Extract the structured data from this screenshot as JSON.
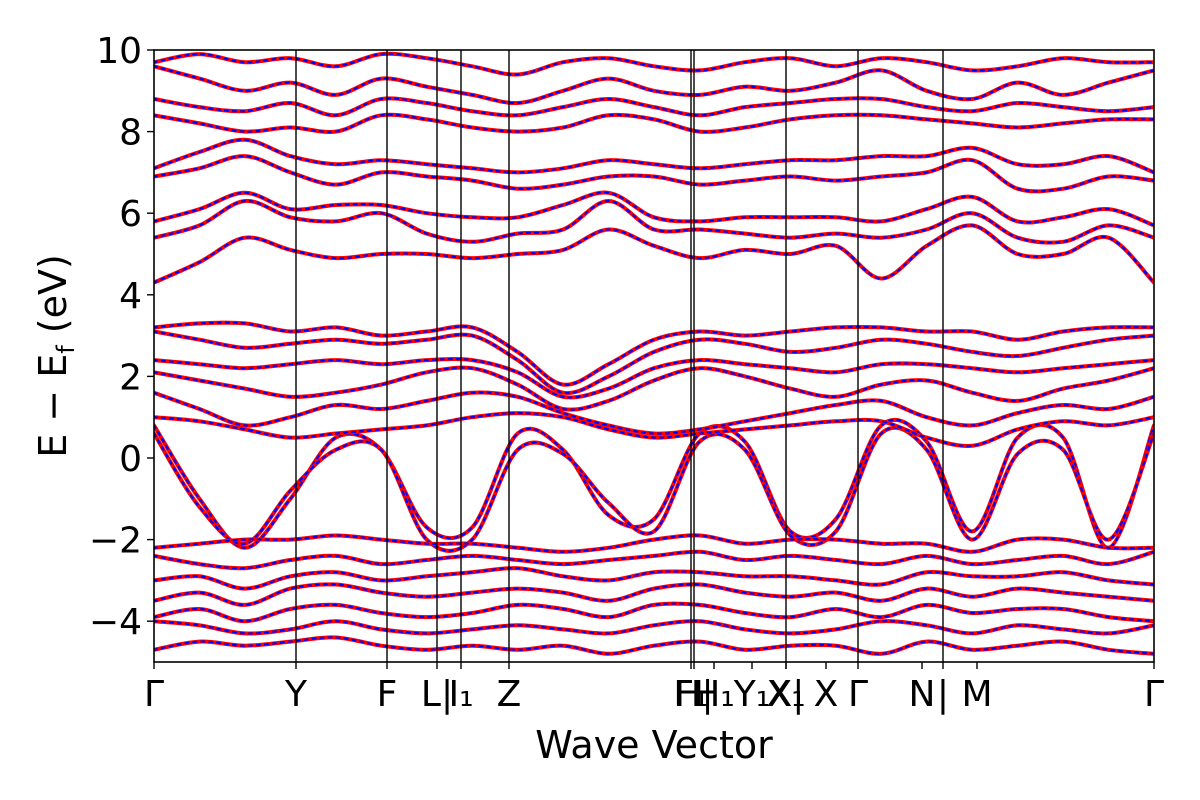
{
  "chart_data": {
    "type": "line",
    "xlabel": "Wave Vector",
    "ylabel": "E − E_f (eV)",
    "ylabel_parts": {
      "main": "E − E",
      "sub": "f",
      "unit": " (eV)"
    },
    "ylim": [
      -5,
      10
    ],
    "yticks": [
      -4,
      -2,
      0,
      2,
      4,
      6,
      8,
      10
    ],
    "ytick_labels": [
      "−4",
      "−2",
      "0",
      "2",
      "4",
      "6",
      "8",
      "10"
    ],
    "xlim": [
      0,
      1
    ],
    "kpath_ticks": [
      {
        "x": 0.0,
        "label": "Γ"
      },
      {
        "x": 0.142,
        "label": "Y"
      },
      {
        "x": 0.233,
        "label": "F"
      },
      {
        "x": 0.283,
        "label": "L|"
      },
      {
        "x": 0.307,
        "label": "I₁"
      },
      {
        "x": 0.355,
        "label": "Z"
      },
      {
        "x": 0.537,
        "label": "F₁"
      },
      {
        "x": 0.54,
        "label": "H|"
      },
      {
        "x": 0.56,
        "label": "H₁"
      },
      {
        "x": 0.598,
        "label": "Y₁"
      },
      {
        "x": 0.632,
        "label": "X|"
      },
      {
        "x": 0.632,
        "label": "X₁"
      },
      {
        "x": 0.672,
        "label": "X"
      },
      {
        "x": 0.704,
        "label": "Γ"
      },
      {
        "x": 0.768,
        "label": "N"
      },
      {
        "x": 0.789,
        "label": "|"
      },
      {
        "x": 0.823,
        "label": "M"
      },
      {
        "x": 1.0,
        "label": "Γ"
      }
    ],
    "kpath_lines": [
      0.142,
      0.233,
      0.283,
      0.307,
      0.355,
      0.537,
      0.54,
      0.632,
      0.704,
      0.789
    ],
    "series_styles": [
      {
        "color": "#ff0000",
        "style": "solid"
      },
      {
        "color": "#0000ff",
        "style": "dashed"
      }
    ],
    "bands": [
      {
        "y": [
          0.8,
          -1.0,
          -2.2,
          -1.0,
          0.5,
          0.2,
          -1.7,
          -1.7,
          0.6,
          0.2,
          -1.4,
          -1.5,
          0.6,
          0.4,
          -1.8,
          -1.5,
          0.8,
          0.4,
          -1.8,
          0.5,
          0.5,
          -2.2,
          0.8
        ]
      },
      {
        "y": [
          0.6,
          -1.2,
          -2.1,
          -0.8,
          0.2,
          0.2,
          -2.0,
          -2.0,
          0.2,
          0.1,
          -1.1,
          -1.8,
          0.4,
          0.2,
          -1.9,
          -1.8,
          0.6,
          0.2,
          -2.0,
          0.1,
          0.2,
          -2.0,
          0.6
        ]
      },
      {
        "y": [
          1.0,
          0.9,
          0.7,
          0.5,
          0.6,
          0.7,
          0.8,
          1.0,
          1.1,
          1.0,
          0.7,
          0.5,
          0.6,
          0.7,
          0.8,
          0.9,
          0.9,
          0.5,
          0.3,
          0.7,
          0.9,
          0.8,
          1.0
        ]
      },
      {
        "y": [
          1.6,
          1.2,
          0.8,
          1.0,
          1.3,
          1.2,
          1.4,
          1.6,
          1.5,
          1.1,
          0.8,
          0.6,
          0.7,
          0.9,
          1.1,
          1.3,
          1.4,
          1.0,
          0.8,
          1.1,
          1.3,
          1.2,
          1.5
        ]
      },
      {
        "y": [
          2.1,
          1.9,
          1.7,
          1.5,
          1.6,
          1.8,
          2.1,
          2.2,
          1.8,
          1.2,
          1.4,
          1.9,
          2.2,
          2.0,
          1.7,
          1.5,
          1.8,
          1.9,
          1.6,
          1.4,
          1.7,
          1.9,
          2.2
        ]
      },
      {
        "y": [
          2.4,
          2.3,
          2.2,
          2.3,
          2.4,
          2.3,
          2.4,
          2.4,
          2.1,
          1.5,
          1.7,
          2.2,
          2.4,
          2.3,
          2.2,
          2.1,
          2.3,
          2.3,
          2.2,
          2.1,
          2.2,
          2.3,
          2.4
        ]
      },
      {
        "y": [
          3.1,
          2.9,
          2.7,
          2.8,
          2.9,
          2.8,
          2.9,
          3.0,
          2.4,
          1.6,
          2.0,
          2.6,
          2.9,
          2.8,
          2.6,
          2.7,
          2.9,
          2.8,
          2.6,
          2.5,
          2.7,
          2.9,
          3.0
        ]
      },
      {
        "y": [
          3.2,
          3.3,
          3.3,
          3.1,
          3.2,
          3.0,
          3.1,
          3.2,
          2.6,
          1.8,
          2.3,
          2.9,
          3.1,
          3.0,
          3.1,
          3.2,
          3.2,
          3.1,
          3.1,
          2.9,
          3.1,
          3.2,
          3.2
        ]
      },
      {
        "y": [
          4.3,
          4.8,
          5.4,
          5.1,
          4.9,
          5.0,
          5.0,
          4.9,
          5.0,
          5.1,
          5.6,
          5.2,
          4.9,
          5.1,
          5.0,
          5.2,
          4.4,
          5.2,
          5.7,
          5.0,
          5.0,
          5.4,
          4.3
        ]
      },
      {
        "y": [
          5.4,
          5.7,
          6.3,
          5.9,
          5.8,
          6.0,
          5.5,
          5.3,
          5.5,
          5.6,
          6.3,
          5.6,
          5.6,
          5.5,
          5.4,
          5.5,
          5.4,
          5.6,
          6.0,
          5.4,
          5.3,
          5.7,
          5.4
        ]
      },
      {
        "y": [
          5.8,
          6.1,
          6.5,
          6.1,
          6.2,
          6.2,
          6.0,
          5.9,
          5.9,
          6.2,
          6.5,
          5.9,
          5.8,
          5.9,
          5.9,
          5.9,
          5.8,
          6.1,
          6.4,
          5.8,
          5.9,
          6.1,
          5.7
        ]
      },
      {
        "y": [
          6.9,
          7.1,
          7.4,
          7.0,
          6.7,
          7.0,
          6.9,
          6.8,
          6.6,
          6.7,
          6.9,
          6.9,
          6.7,
          6.8,
          6.9,
          6.8,
          6.9,
          7.0,
          7.3,
          6.6,
          6.6,
          6.9,
          6.8
        ]
      },
      {
        "y": [
          7.1,
          7.5,
          7.8,
          7.4,
          7.2,
          7.3,
          7.2,
          7.1,
          7.0,
          7.1,
          7.3,
          7.2,
          7.1,
          7.2,
          7.3,
          7.3,
          7.4,
          7.4,
          7.6,
          7.2,
          7.2,
          7.4,
          7.0
        ]
      },
      {
        "y": [
          8.4,
          8.2,
          8.0,
          8.1,
          8.0,
          8.4,
          8.3,
          8.1,
          8.0,
          8.1,
          8.4,
          8.3,
          8.0,
          8.1,
          8.3,
          8.4,
          8.4,
          8.3,
          8.2,
          8.1,
          8.2,
          8.3,
          8.3
        ]
      },
      {
        "y": [
          8.8,
          8.6,
          8.5,
          8.7,
          8.4,
          8.8,
          8.7,
          8.5,
          8.4,
          8.6,
          8.8,
          8.6,
          8.4,
          8.6,
          8.7,
          8.8,
          8.8,
          8.6,
          8.5,
          8.7,
          8.6,
          8.5,
          8.6
        ]
      },
      {
        "y": [
          9.6,
          9.3,
          9.0,
          9.2,
          8.9,
          9.3,
          9.1,
          8.9,
          8.7,
          9.0,
          9.3,
          9.0,
          8.9,
          9.1,
          9.0,
          9.2,
          9.5,
          9.0,
          8.8,
          9.2,
          8.9,
          9.2,
          9.5
        ]
      },
      {
        "y": [
          9.7,
          9.9,
          9.7,
          9.8,
          9.6,
          9.9,
          9.8,
          9.6,
          9.4,
          9.7,
          9.8,
          9.6,
          9.5,
          9.7,
          9.8,
          9.6,
          9.8,
          9.7,
          9.5,
          9.6,
          9.8,
          9.7,
          9.7
        ]
      },
      {
        "y": [
          -2.2,
          -2.1,
          -2.0,
          -2.0,
          -1.9,
          -2.0,
          -2.1,
          -2.1,
          -2.2,
          -2.3,
          -2.2,
          -2.0,
          -1.9,
          -2.1,
          -2.0,
          -2.0,
          -2.1,
          -2.1,
          -2.3,
          -2.0,
          -2.0,
          -2.2,
          -2.2
        ]
      },
      {
        "y": [
          -2.4,
          -2.6,
          -2.7,
          -2.5,
          -2.4,
          -2.6,
          -2.5,
          -2.4,
          -2.5,
          -2.6,
          -2.5,
          -2.4,
          -2.3,
          -2.5,
          -2.4,
          -2.5,
          -2.6,
          -2.4,
          -2.6,
          -2.5,
          -2.4,
          -2.6,
          -2.3
        ]
      },
      {
        "y": [
          -3.0,
          -2.9,
          -3.2,
          -2.9,
          -2.8,
          -3.0,
          -2.9,
          -2.8,
          -2.7,
          -2.9,
          -3.0,
          -2.8,
          -2.8,
          -2.9,
          -2.9,
          -3.0,
          -3.1,
          -2.8,
          -2.9,
          -2.9,
          -2.8,
          -3.0,
          -3.1
        ]
      },
      {
        "y": [
          -3.5,
          -3.3,
          -3.6,
          -3.2,
          -3.1,
          -3.3,
          -3.4,
          -3.3,
          -3.2,
          -3.3,
          -3.5,
          -3.2,
          -3.1,
          -3.3,
          -3.4,
          -3.3,
          -3.5,
          -3.2,
          -3.4,
          -3.2,
          -3.3,
          -3.4,
          -3.5
        ]
      },
      {
        "y": [
          -3.9,
          -3.7,
          -4.0,
          -3.7,
          -3.6,
          -3.8,
          -3.9,
          -3.8,
          -3.6,
          -3.7,
          -3.9,
          -3.6,
          -3.6,
          -3.8,
          -3.9,
          -3.7,
          -3.9,
          -3.6,
          -3.8,
          -3.7,
          -3.7,
          -3.9,
          -4.0
        ]
      },
      {
        "y": [
          -4.0,
          -4.1,
          -4.3,
          -4.2,
          -4.0,
          -4.2,
          -4.3,
          -4.2,
          -4.1,
          -4.2,
          -4.3,
          -4.1,
          -4.0,
          -4.2,
          -4.3,
          -4.2,
          -4.0,
          -4.1,
          -4.3,
          -4.1,
          -4.2,
          -4.3,
          -4.1
        ]
      },
      {
        "y": [
          -4.7,
          -4.5,
          -4.6,
          -4.5,
          -4.4,
          -4.6,
          -4.7,
          -4.6,
          -4.7,
          -4.6,
          -4.8,
          -4.6,
          -4.5,
          -4.7,
          -4.6,
          -4.6,
          -4.8,
          -4.5,
          -4.7,
          -4.6,
          -4.5,
          -4.7,
          -4.8
        ]
      }
    ]
  }
}
